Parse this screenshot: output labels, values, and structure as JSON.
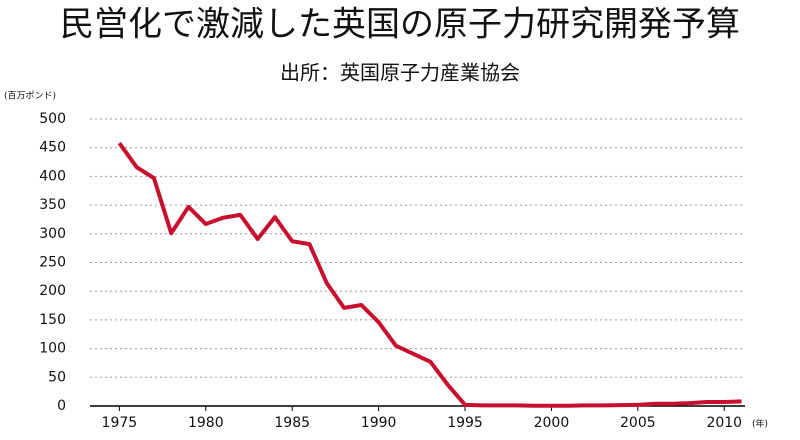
{
  "chart_data": {
    "type": "line",
    "title": "民営化で激減した英国の原子力研究開発予算",
    "subtitle": "出所：英国原子力産業協会",
    "y_label": "(百万ポンド)",
    "x_label": "(年)",
    "x": [
      1975,
      1976,
      1977,
      1978,
      1979,
      1980,
      1981,
      1982,
      1983,
      1984,
      1985,
      1986,
      1987,
      1988,
      1989,
      1990,
      1991,
      1992,
      1993,
      1994,
      1995,
      1996,
      1997,
      1998,
      1999,
      2000,
      2001,
      2002,
      2003,
      2004,
      2005,
      2006,
      2007,
      2008,
      2009,
      2010,
      2011
    ],
    "series": [
      {
        "color": "#c8102e",
        "values": [
          458,
          416,
          397,
          301,
          347,
          317,
          328,
          333,
          291,
          329,
          287,
          282,
          214,
          171,
          176,
          146,
          105,
          91,
          77,
          37,
          2,
          1,
          1,
          1,
          0.5,
          0.5,
          0.5,
          1,
          1,
          1.5,
          2,
          4,
          4,
          5,
          7,
          7,
          8
        ]
      }
    ],
    "xlim": [
      1973.3,
      2011.2
    ],
    "xticks": [
      1975,
      1980,
      1985,
      1990,
      1995,
      2000,
      2005,
      2010
    ],
    "ylim": [
      0,
      500
    ],
    "yticks": [
      0,
      50,
      100,
      150,
      200,
      250,
      300,
      350,
      400,
      450,
      500
    ],
    "grid": true
  }
}
